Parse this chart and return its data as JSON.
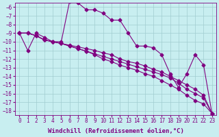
{
  "xlabel": "Windchill (Refroidissement éolien,°C)",
  "background_color": "#c8eef0",
  "grid_color": "#a0ccd0",
  "line_color": "#800080",
  "x_values": [
    0,
    1,
    2,
    3,
    4,
    5,
    6,
    7,
    8,
    9,
    10,
    11,
    12,
    13,
    14,
    15,
    16,
    17,
    18,
    19,
    20,
    21,
    22,
    23
  ],
  "series": [
    [
      -9.0,
      -11.0,
      -9.0,
      -9.5,
      -10.0,
      -10.0,
      -5.3,
      -5.5,
      -6.3,
      -6.3,
      -6.7,
      -7.5,
      -7.5,
      -9.0,
      -10.5,
      -10.5,
      -10.7,
      -11.5,
      -13.7,
      -15.3,
      -13.7,
      -11.5,
      -12.7,
      -18.3
    ],
    [
      -9.0,
      -9.0,
      -9.3,
      -9.8,
      -10.0,
      -10.2,
      -10.4,
      -10.6,
      -10.8,
      -11.0,
      -11.3,
      -11.5,
      -12.0,
      -12.3,
      -12.5,
      -12.8,
      -13.2,
      -13.5,
      -14.0,
      -14.5,
      -15.0,
      -15.5,
      -16.2,
      -18.3
    ],
    [
      -9.0,
      -9.0,
      -9.3,
      -9.8,
      -10.0,
      -10.2,
      -10.5,
      -10.8,
      -11.1,
      -11.4,
      -11.7,
      -12.0,
      -12.3,
      -12.6,
      -12.9,
      -13.2,
      -13.5,
      -13.8,
      -14.2,
      -14.8,
      -15.5,
      -16.0,
      -16.5,
      -18.3
    ],
    [
      -9.0,
      -9.0,
      -9.3,
      -9.8,
      -10.0,
      -10.2,
      -10.5,
      -10.8,
      -11.1,
      -11.5,
      -12.0,
      -12.3,
      -12.7,
      -13.0,
      -13.3,
      -13.7,
      -14.0,
      -14.5,
      -15.0,
      -15.5,
      -16.2,
      -16.8,
      -17.2,
      -18.3
    ]
  ],
  "ylim": [
    -18.5,
    -5.5
  ],
  "yticks": [
    -6,
    -7,
    -8,
    -9,
    -10,
    -11,
    -12,
    -13,
    -14,
    -15,
    -16,
    -17,
    -18
  ],
  "xlim": [
    -0.5,
    23.5
  ],
  "marker": "D",
  "markersize": 2.5,
  "linewidth": 0.8,
  "font_color": "#800080",
  "tick_fontsize": 5.5,
  "label_fontsize": 6.5
}
